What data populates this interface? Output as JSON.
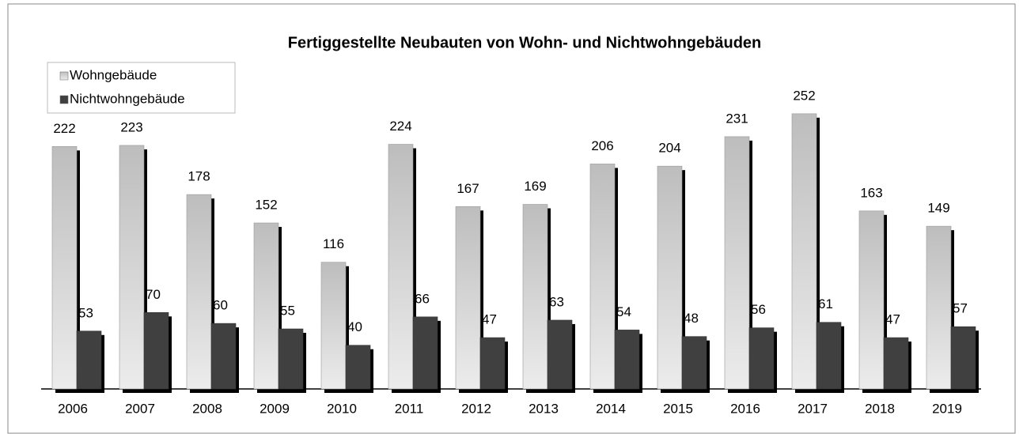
{
  "chart_data": {
    "type": "bar",
    "title": "Fertiggestellte Neubauten von Wohn- und Nichtwohngebäuden",
    "categories": [
      "2006",
      "2007",
      "2008",
      "2009",
      "2010",
      "2011",
      "2012",
      "2013",
      "2014",
      "2015",
      "2016",
      "2017",
      "2018",
      "2019"
    ],
    "series": [
      {
        "name": "Wohngebäude",
        "color": "#c8c8c8",
        "values": [
          222,
          223,
          178,
          152,
          116,
          224,
          167,
          169,
          206,
          204,
          231,
          252,
          163,
          149
        ]
      },
      {
        "name": "Nichtwohngebäude",
        "color": "#404040",
        "values": [
          53,
          70,
          60,
          55,
          40,
          66,
          47,
          63,
          54,
          48,
          56,
          61,
          47,
          57
        ]
      }
    ],
    "ylim": [
      0,
      270
    ],
    "legend": "top-left"
  }
}
